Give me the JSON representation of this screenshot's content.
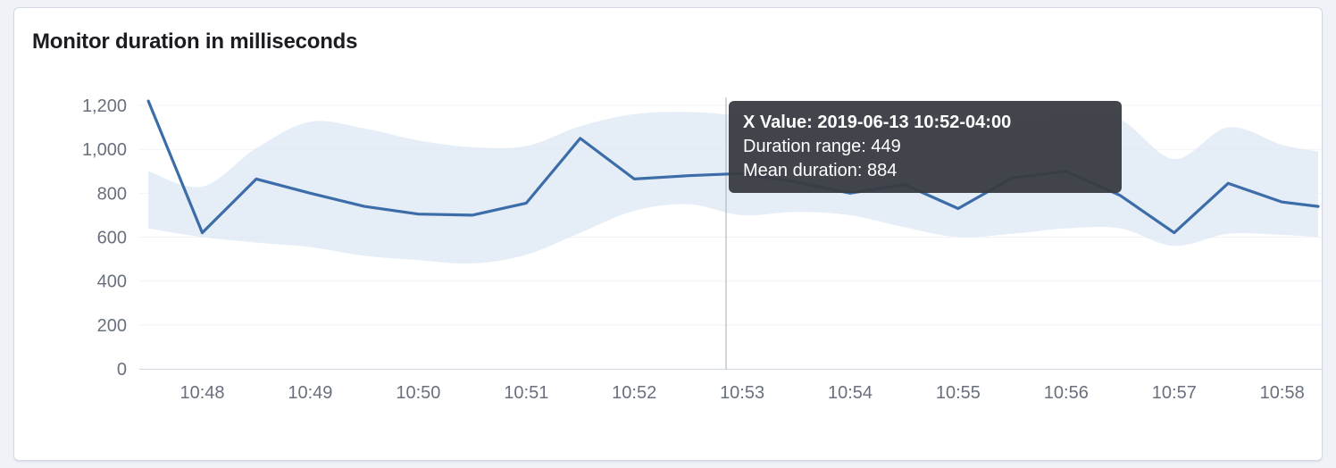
{
  "tooltip": {
    "x_label": "X Value: 2019-06-13 10:52-04:00",
    "range_label": "Duration range: 449",
    "mean_label": "Mean duration: 884"
  },
  "colors": {
    "line": "#3c6da8",
    "band": "#dfe9f5",
    "crosshair": "#b3bac3",
    "axis_text": "#69707d",
    "axis_line": "#d3dae6",
    "grid_line": "#f1f3f6",
    "tooltip_bg": "#383b41",
    "title": "#1a1c21"
  },
  "chart_data": {
    "type": "line",
    "title": "Monitor duration in milliseconds",
    "xlabel": "",
    "ylabel": "",
    "ylim": [
      0,
      1200
    ],
    "grid": true,
    "legend_position": "none",
    "x_domain": [
      "10:47:25",
      "10:58:22"
    ],
    "crosshair": {
      "time": "10:52:51"
    },
    "series": [
      {
        "name": "Mean duration",
        "type": "line"
      },
      {
        "name": "Duration range",
        "type": "band"
      }
    ],
    "y_ticks": [
      {
        "value": 0,
        "label": "0"
      },
      {
        "value": 200,
        "label": "200"
      },
      {
        "value": 400,
        "label": "400"
      },
      {
        "value": 600,
        "label": "600"
      },
      {
        "value": 800,
        "label": "800"
      },
      {
        "value": 1000,
        "label": "1,000"
      },
      {
        "value": 1200,
        "label": "1,200"
      }
    ],
    "x_ticks": [
      {
        "time": "10:48:00",
        "label": "10:48"
      },
      {
        "time": "10:49:00",
        "label": "10:49"
      },
      {
        "time": "10:50:00",
        "label": "10:50"
      },
      {
        "time": "10:51:00",
        "label": "10:51"
      },
      {
        "time": "10:52:00",
        "label": "10:52"
      },
      {
        "time": "10:53:00",
        "label": "10:53"
      },
      {
        "time": "10:54:00",
        "label": "10:54"
      },
      {
        "time": "10:55:00",
        "label": "10:55"
      },
      {
        "time": "10:56:00",
        "label": "10:56"
      },
      {
        "time": "10:57:00",
        "label": "10:57"
      },
      {
        "time": "10:58:00",
        "label": "10:58"
      }
    ],
    "points": [
      {
        "time": "10:47:30",
        "mean": 1220,
        "lower": 640,
        "upper": 900
      },
      {
        "time": "10:48:00",
        "mean": 620,
        "lower": 600,
        "upper": 830
      },
      {
        "time": "10:48:30",
        "mean": 865,
        "lower": 575,
        "upper": 1005
      },
      {
        "time": "10:49:00",
        "mean": 800,
        "lower": 555,
        "upper": 1125
      },
      {
        "time": "10:49:30",
        "mean": 740,
        "lower": 515,
        "upper": 1095
      },
      {
        "time": "10:50:00",
        "mean": 705,
        "lower": 495,
        "upper": 1040
      },
      {
        "time": "10:50:30",
        "mean": 700,
        "lower": 480,
        "upper": 1010
      },
      {
        "time": "10:51:00",
        "mean": 755,
        "lower": 520,
        "upper": 1015
      },
      {
        "time": "10:51:30",
        "mean": 1050,
        "lower": 620,
        "upper": 1105
      },
      {
        "time": "10:52:00",
        "mean": 865,
        "lower": 720,
        "upper": 1160
      },
      {
        "time": "10:52:30",
        "mean": 880,
        "lower": 750,
        "upper": 1170
      },
      {
        "time": "10:53:00",
        "mean": 890,
        "lower": 700,
        "upper": 1149
      },
      {
        "time": "10:53:30",
        "mean": 850,
        "lower": 715,
        "upper": 1100
      },
      {
        "time": "10:54:00",
        "mean": 800,
        "lower": 700,
        "upper": 1075
      },
      {
        "time": "10:54:30",
        "mean": 840,
        "lower": 645,
        "upper": 1090
      },
      {
        "time": "10:55:00",
        "mean": 730,
        "lower": 600,
        "upper": 1080
      },
      {
        "time": "10:55:30",
        "mean": 870,
        "lower": 615,
        "upper": 1100
      },
      {
        "time": "10:56:00",
        "mean": 900,
        "lower": 640,
        "upper": 1150
      },
      {
        "time": "10:56:30",
        "mean": 790,
        "lower": 640,
        "upper": 1135
      },
      {
        "time": "10:57:00",
        "mean": 620,
        "lower": 560,
        "upper": 955
      },
      {
        "time": "10:57:30",
        "mean": 845,
        "lower": 615,
        "upper": 1100
      },
      {
        "time": "10:58:00",
        "mean": 760,
        "lower": 610,
        "upper": 1020
      },
      {
        "time": "10:58:20",
        "mean": 740,
        "lower": 600,
        "upper": 990
      }
    ]
  }
}
